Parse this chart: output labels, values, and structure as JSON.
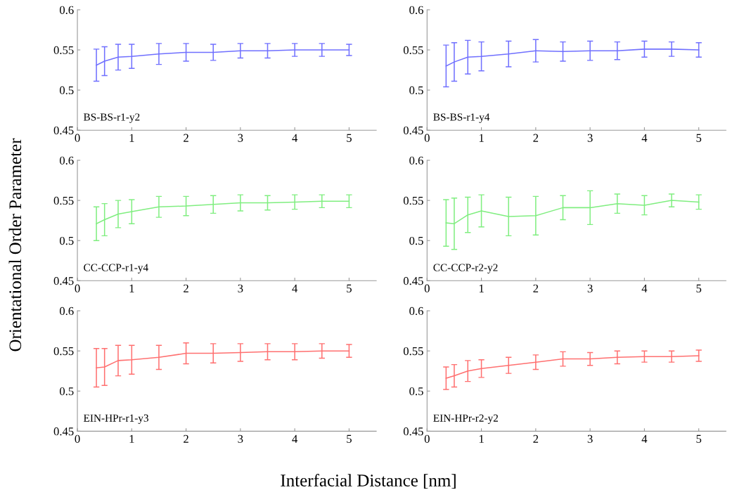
{
  "chart_data": [
    {
      "type": "line",
      "ylabel": "Orientational Order Parameter",
      "annotations": [
        "BS-BS-r1-y2"
      ],
      "xlim": [
        0,
        5.5
      ],
      "xticks": [
        0,
        1,
        2,
        3,
        4,
        5
      ],
      "ylim": [
        0.45,
        0.6
      ],
      "yticks": [
        0.45,
        0.5,
        0.55,
        0.6
      ],
      "x": [
        0.35,
        0.5,
        0.75,
        1,
        1.5,
        2,
        2.5,
        3,
        3.5,
        4,
        4.5,
        5
      ],
      "series": [
        {
          "color": "#7070ff",
          "values": [
            0.531,
            0.536,
            0.541,
            0.542,
            0.545,
            0.547,
            0.547,
            0.549,
            0.549,
            0.55,
            0.55,
            0.55
          ],
          "errors": [
            0.02,
            0.018,
            0.016,
            0.015,
            0.013,
            0.011,
            0.01,
            0.009,
            0.009,
            0.008,
            0.008,
            0.007
          ]
        }
      ]
    },
    {
      "type": "line",
      "annotations": [
        "BS-BS-r1-y4"
      ],
      "xlim": [
        0,
        5.5
      ],
      "xticks": [
        0,
        1,
        2,
        3,
        4,
        5
      ],
      "ylim": [
        0.45,
        0.6
      ],
      "yticks": [
        0.45,
        0.5,
        0.55,
        0.6
      ],
      "x": [
        0.35,
        0.5,
        0.75,
        1,
        1.5,
        2,
        2.5,
        3,
        3.5,
        4,
        4.5,
        5
      ],
      "series": [
        {
          "color": "#7070ff",
          "values": [
            0.53,
            0.535,
            0.541,
            0.542,
            0.545,
            0.549,
            0.548,
            0.549,
            0.549,
            0.551,
            0.551,
            0.55
          ],
          "errors": [
            0.026,
            0.024,
            0.021,
            0.018,
            0.016,
            0.014,
            0.012,
            0.012,
            0.011,
            0.01,
            0.009,
            0.009
          ]
        }
      ]
    },
    {
      "type": "line",
      "annotations": [
        "CC-CCP-r1-y4"
      ],
      "xlim": [
        0,
        5.5
      ],
      "xticks": [
        0,
        1,
        2,
        3,
        4,
        5
      ],
      "ylim": [
        0.45,
        0.6
      ],
      "yticks": [
        0.45,
        0.5,
        0.55,
        0.6
      ],
      "x": [
        0.35,
        0.5,
        0.75,
        1,
        1.5,
        2,
        2.5,
        3,
        3.5,
        4,
        4.5,
        5
      ],
      "series": [
        {
          "color": "#80ee80",
          "values": [
            0.521,
            0.526,
            0.533,
            0.536,
            0.542,
            0.543,
            0.545,
            0.547,
            0.547,
            0.548,
            0.549,
            0.549
          ],
          "errors": [
            0.021,
            0.02,
            0.017,
            0.015,
            0.013,
            0.012,
            0.011,
            0.01,
            0.009,
            0.009,
            0.008,
            0.008
          ]
        }
      ]
    },
    {
      "type": "line",
      "annotations": [
        "CC-CCP-r2-y2"
      ],
      "xlim": [
        0,
        5.5
      ],
      "xticks": [
        0,
        1,
        2,
        3,
        4,
        5
      ],
      "ylim": [
        0.45,
        0.6
      ],
      "yticks": [
        0.45,
        0.5,
        0.55,
        0.6
      ],
      "x": [
        0.35,
        0.5,
        0.75,
        1,
        1.5,
        2,
        2.5,
        3,
        3.5,
        4,
        4.5,
        5
      ],
      "series": [
        {
          "color": "#80ee80",
          "values": [
            0.522,
            0.521,
            0.532,
            0.537,
            0.53,
            0.531,
            0.541,
            0.541,
            0.546,
            0.544,
            0.55,
            0.548
          ],
          "errors": [
            0.029,
            0.032,
            0.022,
            0.02,
            0.024,
            0.024,
            0.015,
            0.021,
            0.012,
            0.012,
            0.008,
            0.009
          ]
        }
      ]
    },
    {
      "type": "line",
      "annotations": [
        "EIN-HPr-r1-y3"
      ],
      "xlim": [
        0,
        5.5
      ],
      "xticks": [
        0,
        1,
        2,
        3,
        4,
        5
      ],
      "ylim": [
        0.45,
        0.6
      ],
      "yticks": [
        0.45,
        0.5,
        0.55,
        0.6
      ],
      "x": [
        0.35,
        0.5,
        0.75,
        1,
        1.5,
        2,
        2.5,
        3,
        3.5,
        4,
        4.5,
        5
      ],
      "series": [
        {
          "color": "#ff7070",
          "values": [
            0.529,
            0.53,
            0.538,
            0.539,
            0.542,
            0.547,
            0.547,
            0.548,
            0.549,
            0.549,
            0.55,
            0.55
          ],
          "errors": [
            0.024,
            0.023,
            0.019,
            0.018,
            0.015,
            0.013,
            0.012,
            0.011,
            0.01,
            0.01,
            0.009,
            0.008
          ]
        }
      ]
    },
    {
      "type": "line",
      "xlabel": "Interfacial Distance [nm]",
      "annotations": [
        "EIN-HPr-r2-y2"
      ],
      "xlim": [
        0,
        5.5
      ],
      "xticks": [
        0,
        1,
        2,
        3,
        4,
        5
      ],
      "ylim": [
        0.45,
        0.6
      ],
      "yticks": [
        0.45,
        0.5,
        0.55,
        0.6
      ],
      "x": [
        0.35,
        0.5,
        0.75,
        1,
        1.5,
        2,
        2.5,
        3,
        3.5,
        4,
        4.5,
        5
      ],
      "series": [
        {
          "color": "#ff7070",
          "values": [
            0.516,
            0.519,
            0.525,
            0.528,
            0.532,
            0.536,
            0.54,
            0.54,
            0.542,
            0.543,
            0.543,
            0.544
          ],
          "errors": [
            0.014,
            0.014,
            0.013,
            0.011,
            0.01,
            0.009,
            0.009,
            0.008,
            0.008,
            0.007,
            0.007,
            0.007
          ]
        }
      ]
    }
  ]
}
